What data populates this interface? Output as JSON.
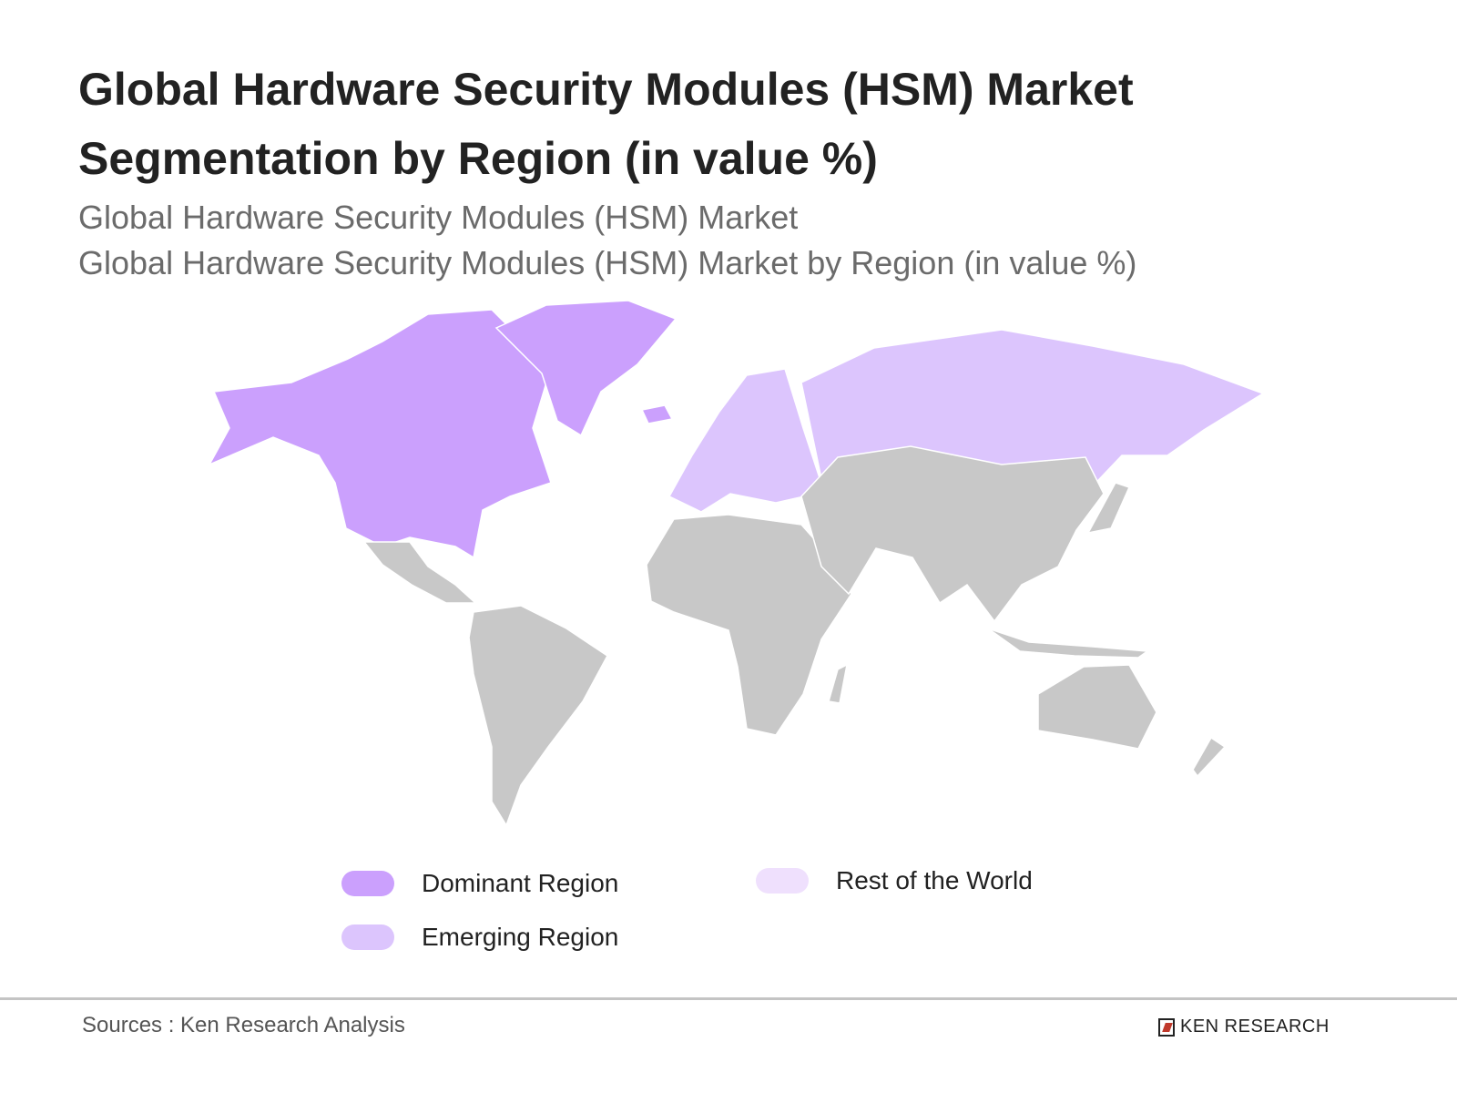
{
  "title": "Global Hardware Security Modules (HSM) Market Segmentation by Region (in value %)",
  "subtitle_line1": "Global Hardware Security Modules (HSM) Market",
  "subtitle_line2": "Global Hardware Security Modules (HSM) Market by Region (in value %)",
  "map": {
    "regions": [
      {
        "name": "North America",
        "category": "Dominant Region"
      },
      {
        "name": "Europe",
        "category": "Emerging Region"
      },
      {
        "name": "Russia",
        "category": "Emerging Region"
      },
      {
        "name": "Rest of World",
        "category": "unshaded"
      }
    ],
    "colors": {
      "dominant": "#cba0fd",
      "emerging": "#dcc5fd",
      "rest": "#efe0fd",
      "unshaded": "#c8c8c8"
    }
  },
  "legend": [
    {
      "label": "Dominant Region",
      "color": "#cba0fd"
    },
    {
      "label": "Emerging Region",
      "color": "#dcc5fd"
    },
    {
      "label": "Rest of the World",
      "color": "#efe0fd"
    }
  ],
  "footer": {
    "source": "Sources : Ken Research Analysis",
    "logo_text": "KEN RESEARCH"
  }
}
